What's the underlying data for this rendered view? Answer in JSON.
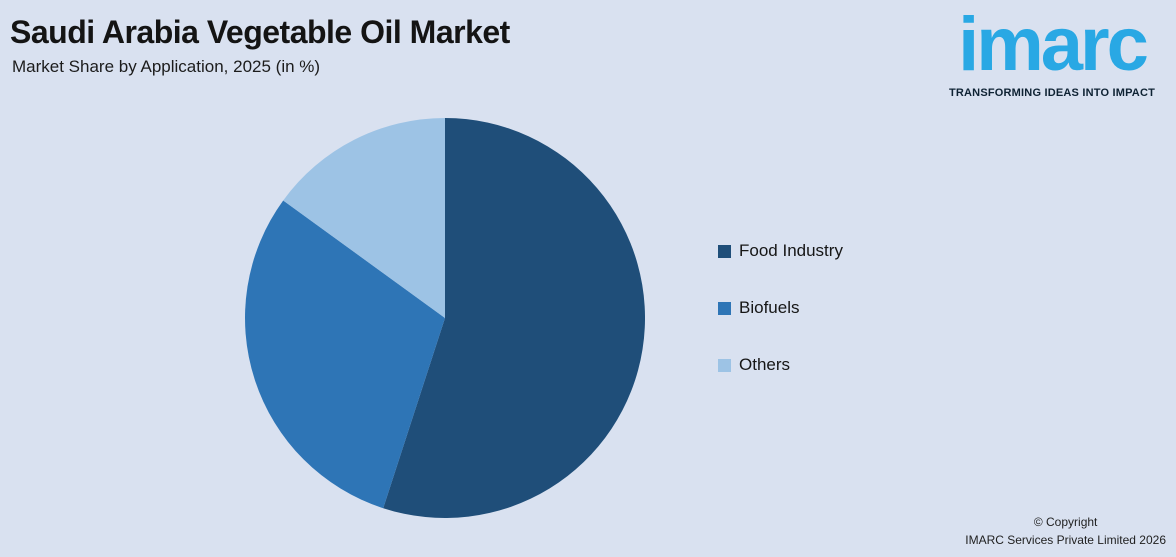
{
  "header": {
    "title": "Saudi Arabia Vegetable Oil Market",
    "subtitle": "Market Share by Application, 2025 (in %)"
  },
  "logo": {
    "text": "imarc",
    "tagline": "TRANSFORMING IDEAS INTO IMPACT",
    "brand_color": "#29A8E4"
  },
  "chart_data": {
    "type": "pie",
    "title": "Saudi Arabia Vegetable Oil Market",
    "subtitle": "Market Share by Application, 2025 (in %)",
    "categories": [
      "Food Industry",
      "Biofuels",
      "Others"
    ],
    "values": [
      55,
      30,
      15
    ],
    "unit": "%",
    "colors": [
      "#1F4E79",
      "#2E75B6",
      "#9DC3E5"
    ],
    "start_angle_deg": 0,
    "direction": "clockwise",
    "legend_position": "right",
    "background_color": "#D9E1F0"
  },
  "footer": {
    "line1": "© Copyright",
    "line2": "IMARC Services Private Limited 2026"
  }
}
